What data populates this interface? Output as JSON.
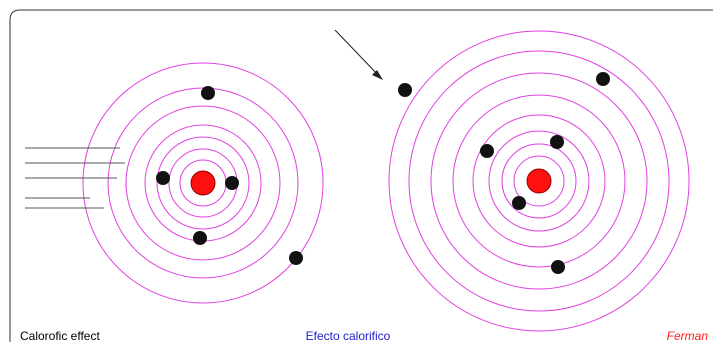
{
  "captions": {
    "left": "Calorofic effect",
    "center": "Efecto calorifico",
    "right": "Ferman"
  }
}
